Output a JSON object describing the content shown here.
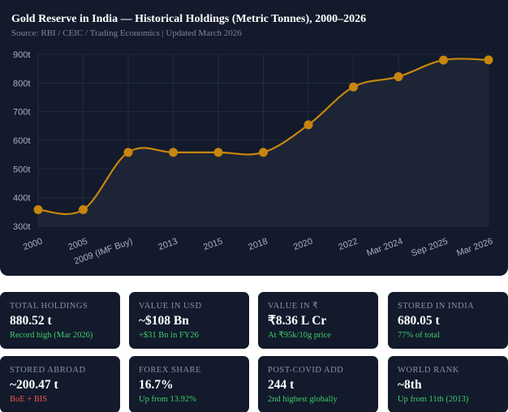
{
  "page": {
    "title": "Gold Reserve in India — Historical Holdings (Metric Tonnes), 2000–2026",
    "subtitle": "Source: RBI / CEIC / Trading Economics | Updated March 2026"
  },
  "chart_data": {
    "type": "line",
    "title": "Gold Reserve in India — Historical Holdings (Metric Tonnes), 2000–2026",
    "subtitle": "Source: RBI / CEIC / Trading Economics | Updated March 2026",
    "categories": [
      "2000",
      "2005",
      "2009 (IMF Buy)",
      "2013",
      "2015",
      "2018",
      "2020",
      "2022",
      "Mar 2024",
      "Sep 2025",
      "Mar 2026"
    ],
    "series": [
      {
        "values": [
          358,
          358,
          558,
          558,
          558,
          558,
          654,
          786,
          822,
          880,
          880.52
        ]
      }
    ],
    "y_tick_labels": [
      "300t",
      "400t",
      "500t",
      "600t",
      "700t",
      "800t",
      "900t"
    ],
    "ylim": [
      300,
      900
    ],
    "y_ticks": [
      300,
      400,
      500,
      600,
      700,
      800,
      900
    ],
    "grid": true,
    "filled_area": true,
    "colors": {
      "line": "#c8860d",
      "marker": "#c8860d",
      "fill": "#1e2636",
      "grid": "#222c3d",
      "tick": "#a9b1c1"
    }
  },
  "cards": [
    {
      "label": "TOTAL HOLDINGS",
      "value": "880.52 t",
      "note": "Record high (Mar 2026)",
      "note_color": "green"
    },
    {
      "label": "VALUE IN USD",
      "value": "~$108 Bn",
      "note": "+$31 Bn in FY26",
      "note_color": "green"
    },
    {
      "label": "VALUE IN ₹",
      "value": "₹8.36 L Cr",
      "note": "At ₹95k/10g price",
      "note_color": "green"
    },
    {
      "label": "STORED IN INDIA",
      "value": "680.05 t",
      "note": "77% of total",
      "note_color": "green"
    },
    {
      "label": "STORED ABROAD",
      "value": "~200.47 t",
      "note": "BoE + BIS",
      "note_color": "red"
    },
    {
      "label": "FOREX SHARE",
      "value": "16.7%",
      "note": "Up from 13.92%",
      "note_color": "green"
    },
    {
      "label": "POST-COVID ADD",
      "value": "244 t",
      "note": "2nd highest globally",
      "note_color": "green"
    },
    {
      "label": "WORLD RANK",
      "value": "~8th",
      "note": "Up from 11th (2013)",
      "note_color": "green"
    }
  ]
}
